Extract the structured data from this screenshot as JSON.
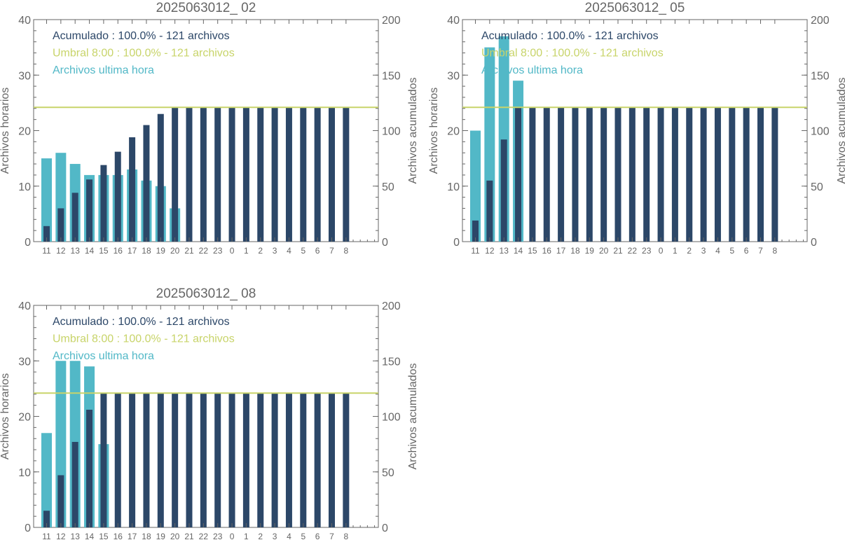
{
  "colors": {
    "hourly": "#52b8c7",
    "cumulative": "#2c4768",
    "threshold": "#c8d46a",
    "axis": "#666666",
    "text": "#666666"
  },
  "chart_data": [
    {
      "type": "bar",
      "title": "2025063012_ 02",
      "ylabel": "Archivos horarios",
      "y2label": "Archivos acumulados",
      "ylim": [
        0,
        40
      ],
      "y2lim": [
        0,
        200
      ],
      "yticks": [
        "0",
        "10",
        "20",
        "30",
        "40"
      ],
      "y2ticks": [
        "0",
        "50",
        "100",
        "150",
        "200"
      ],
      "categories": [
        "11",
        "12",
        "13",
        "14",
        "15",
        "16",
        "17",
        "18",
        "19",
        "20",
        "21",
        "22",
        "23",
        "0",
        "1",
        "2",
        "3",
        "4",
        "5",
        "6",
        "7",
        "8"
      ],
      "threshold": 121,
      "legend": [
        "Acumulado : 100.0% - 121 archivos",
        "Umbral 8:00 : 100.0% - 121 archivos",
        "Archivos ultima hora"
      ],
      "series": [
        {
          "name": "Archivos ultima hora",
          "axis": "left",
          "values": [
            15,
            16,
            14,
            12,
            12,
            12,
            13,
            11,
            10,
            6,
            null,
            null,
            null,
            null,
            null,
            null,
            null,
            null,
            null,
            null,
            null,
            null
          ]
        },
        {
          "name": "Acumulado",
          "axis": "right",
          "values": [
            14,
            30,
            44,
            56,
            69,
            81,
            94,
            105,
            115,
            121,
            121,
            121,
            121,
            121,
            121,
            121,
            121,
            121,
            121,
            121,
            121,
            121
          ]
        }
      ]
    },
    {
      "type": "bar",
      "title": "2025063012_ 05",
      "ylabel": "Archivos horarios",
      "y2label": "Archivos acumulados",
      "ylim": [
        0,
        40
      ],
      "y2lim": [
        0,
        200
      ],
      "yticks": [
        "0",
        "10",
        "20",
        "30",
        "40"
      ],
      "y2ticks": [
        "0",
        "50",
        "100",
        "150",
        "200"
      ],
      "categories": [
        "11",
        "12",
        "13",
        "14",
        "15",
        "16",
        "17",
        "18",
        "19",
        "20",
        "21",
        "22",
        "23",
        "0",
        "1",
        "2",
        "3",
        "4",
        "5",
        "6",
        "7",
        "8"
      ],
      "threshold": 121,
      "legend": [
        "Acumulado : 100.0% - 121 archivos",
        "Umbral 8:00 : 100.0% - 121 archivos",
        "Archivos ultima hora"
      ],
      "series": [
        {
          "name": "Archivos ultima hora",
          "axis": "left",
          "values": [
            20,
            35,
            37,
            29,
            null,
            null,
            null,
            null,
            null,
            null,
            null,
            null,
            null,
            null,
            null,
            null,
            null,
            null,
            null,
            null,
            null,
            null
          ]
        },
        {
          "name": "Acumulado",
          "axis": "right",
          "values": [
            19,
            55,
            92,
            121,
            121,
            121,
            121,
            121,
            121,
            121,
            121,
            121,
            121,
            121,
            121,
            121,
            121,
            121,
            121,
            121,
            121,
            121
          ]
        }
      ]
    },
    {
      "type": "bar",
      "title": "2025063012_ 08",
      "ylabel": "Archivos horarios",
      "y2label": "Archivos acumulados",
      "ylim": [
        0,
        40
      ],
      "y2lim": [
        0,
        200
      ],
      "yticks": [
        "0",
        "10",
        "20",
        "30",
        "40"
      ],
      "y2ticks": [
        "0",
        "50",
        "100",
        "150",
        "200"
      ],
      "categories": [
        "11",
        "12",
        "13",
        "14",
        "15",
        "16",
        "17",
        "18",
        "19",
        "20",
        "21",
        "22",
        "23",
        "0",
        "1",
        "2",
        "3",
        "4",
        "5",
        "6",
        "7",
        "8"
      ],
      "threshold": 121,
      "legend": [
        "Acumulado : 100.0% - 121 archivos",
        "Umbral 8:00 : 100.0% - 121 archivos",
        "Archivos ultima hora"
      ],
      "series": [
        {
          "name": "Archivos ultima hora",
          "axis": "left",
          "values": [
            17,
            30,
            30,
            29,
            15,
            null,
            null,
            null,
            null,
            null,
            null,
            null,
            null,
            null,
            null,
            null,
            null,
            null,
            null,
            null,
            null,
            null
          ]
        },
        {
          "name": "Acumulado",
          "axis": "right",
          "values": [
            15,
            47,
            77,
            106,
            121,
            121,
            121,
            121,
            121,
            121,
            121,
            121,
            121,
            121,
            121,
            121,
            121,
            121,
            121,
            121,
            121,
            121
          ]
        }
      ]
    }
  ]
}
